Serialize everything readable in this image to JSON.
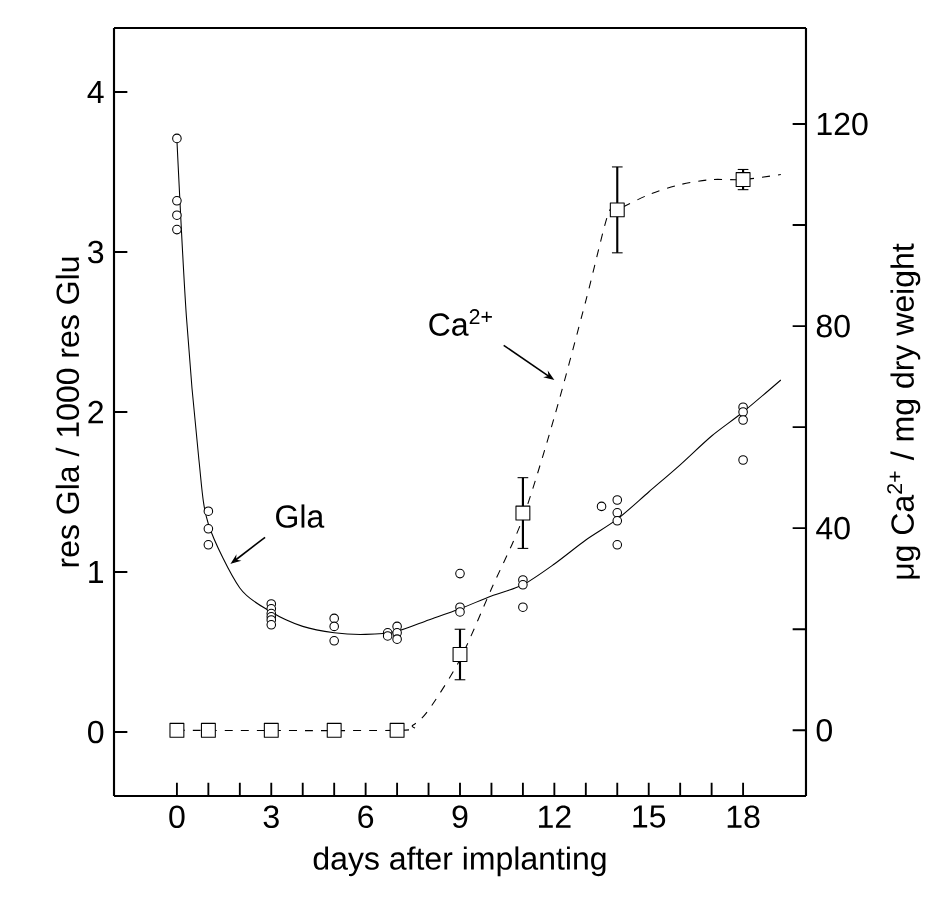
{
  "chart_data": {
    "type": "scatter",
    "xlabel": "days after implanting",
    "ylabel": "res Gla / 1000 res Glu",
    "y2label": "μg Ca$^{2+}$ / mg dry weight",
    "xlim": [
      -2,
      20
    ],
    "ylim": [
      -0.4,
      4.4
    ],
    "y2lim": [
      -13,
      139
    ],
    "xticks": [
      0,
      {
        "value": 1,
        "label": null
      },
      {
        "value": 2,
        "label": null
      },
      3,
      {
        "value": 4,
        "label": null
      },
      {
        "value": 5,
        "label": null
      },
      6,
      {
        "value": 7,
        "label": null
      },
      {
        "value": 8,
        "label": null
      },
      9,
      {
        "value": 10,
        "label": null
      },
      {
        "value": 11,
        "label": null
      },
      12,
      {
        "value": 13,
        "label": null
      },
      {
        "value": 14,
        "label": null
      },
      15,
      {
        "value": 16,
        "label": null
      },
      {
        "value": 17,
        "label": null
      },
      18
    ],
    "yticks": [
      0,
      1,
      2,
      3,
      4
    ],
    "y2ticks": [
      0,
      {
        "value": 20,
        "label": null
      },
      40,
      {
        "value": 60,
        "label": null
      },
      80,
      {
        "value": 100,
        "label": null
      },
      120
    ],
    "series": [
      {
        "color": "#000000",
        "marker": "circle",
        "x": [
          0,
          0,
          0,
          0,
          1,
          1,
          1,
          3,
          3,
          3,
          3,
          3,
          3,
          5,
          5,
          5,
          6.7,
          6.7,
          7,
          7,
          7,
          9,
          9,
          9,
          11,
          11,
          11,
          13.5,
          14,
          14,
          14,
          14,
          18,
          18,
          18,
          18
        ],
        "values": [
          3.71,
          3.32,
          3.23,
          3.14,
          1.38,
          1.27,
          1.17,
          0.8,
          0.77,
          0.74,
          0.72,
          0.7,
          0.67,
          0.71,
          0.66,
          0.57,
          0.62,
          0.6,
          0.66,
          0.62,
          0.58,
          0.99,
          0.78,
          0.75,
          0.95,
          0.92,
          0.78,
          1.41,
          1.45,
          1.37,
          1.32,
          1.17,
          2.03,
          2.0,
          1.95,
          1.7
        ]
      },
      {
        "type": "line",
        "color": "#000000",
        "line_style": "solid",
        "marker": "none",
        "x": [
          0,
          0.3,
          0.7,
          1,
          2,
          3,
          4,
          5,
          6,
          7,
          8,
          9,
          10,
          11,
          12,
          13,
          14,
          15,
          16,
          17,
          18,
          19.2
        ],
        "values": [
          3.7,
          2.6,
          1.7,
          1.3,
          0.9,
          0.75,
          0.66,
          0.62,
          0.61,
          0.63,
          0.7,
          0.77,
          0.85,
          0.92,
          1.05,
          1.2,
          1.33,
          1.5,
          1.67,
          1.85,
          2.0,
          2.2
        ]
      },
      {
        "axis": "y2",
        "color": "#000000",
        "marker": "square",
        "x": [
          0,
          1,
          3,
          5,
          7,
          9,
          11,
          14,
          18
        ],
        "values": [
          0,
          0,
          0,
          0,
          0,
          15,
          43,
          103,
          109
        ],
        "errors": [
          null,
          null,
          null,
          null,
          null,
          5,
          7,
          8.5,
          2
        ]
      },
      {
        "type": "line",
        "axis": "y2",
        "color": "#000000",
        "line_style": "dashed",
        "marker": "none",
        "x": [
          0,
          7,
          7.5,
          8,
          9,
          10,
          11,
          12,
          13,
          13.7,
          14,
          15,
          16,
          17,
          18,
          19.2
        ],
        "values": [
          0,
          0,
          1,
          4,
          14,
          28,
          42,
          62,
          85,
          102,
          103,
          106,
          108,
          109,
          109,
          110
        ]
      }
    ],
    "annotations": [
      {
        "text": "Gla",
        "x": 1.7,
        "y": 1.05
      },
      {
        "text": "Ca$^{2+}$",
        "x": 12,
        "y": 2.2
      }
    ]
  }
}
